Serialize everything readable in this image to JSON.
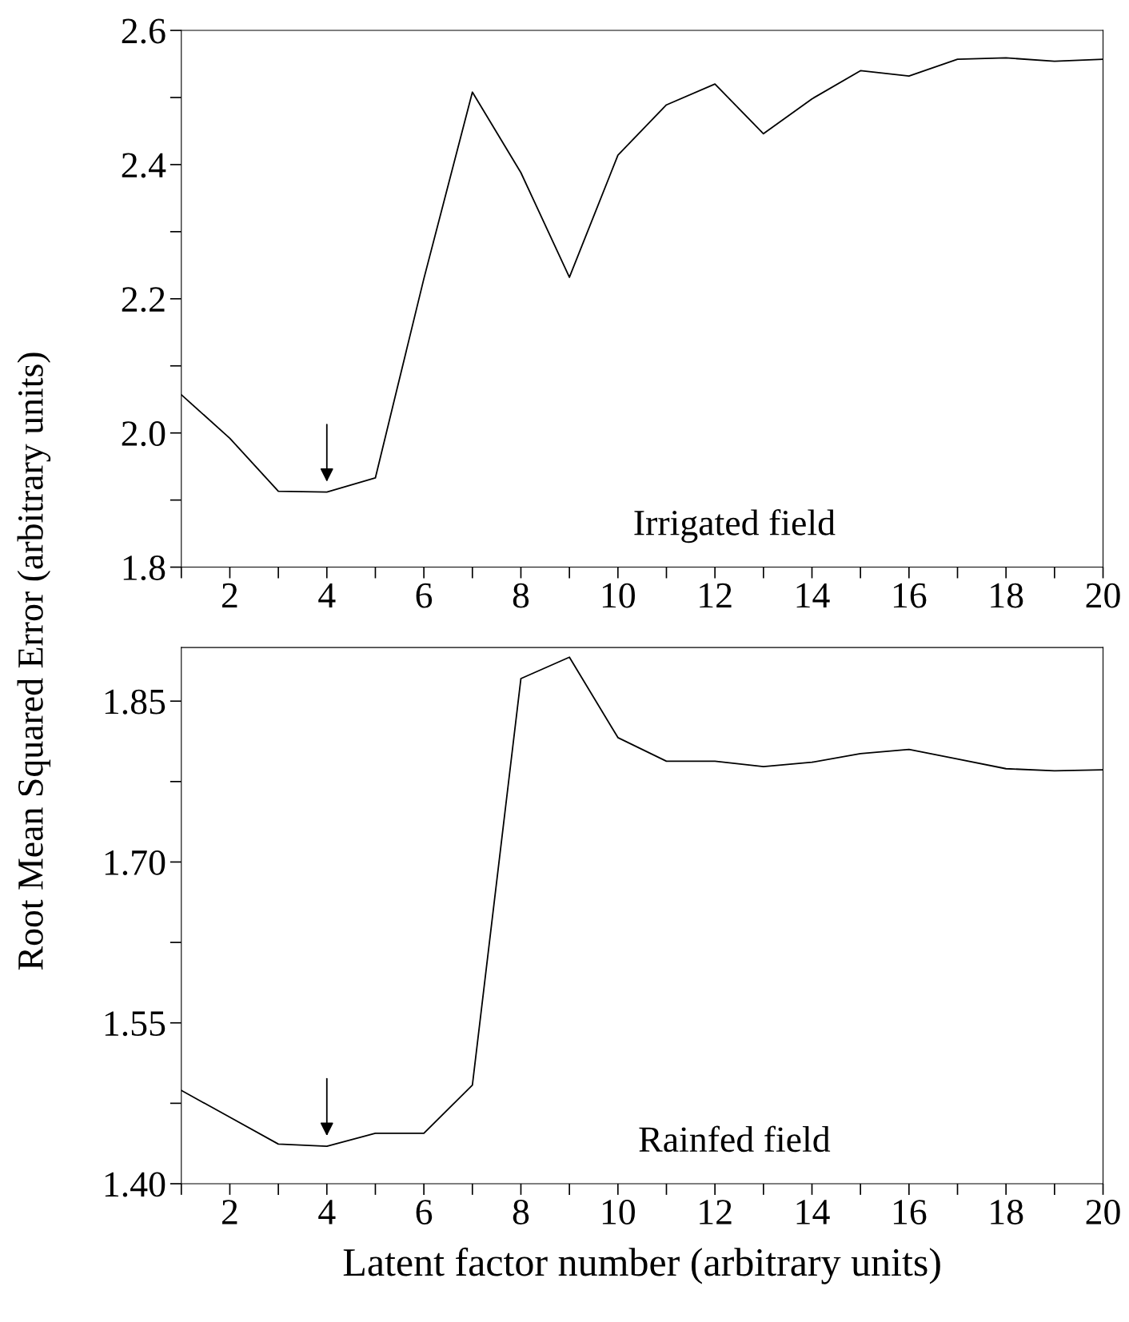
{
  "chart_data": [
    {
      "type": "line",
      "ylabel": "Root Mean Squared Error (arbitrary units)",
      "x": [
        1,
        2,
        3,
        4,
        5,
        6,
        7,
        8,
        9,
        10,
        11,
        12,
        13,
        14,
        15,
        16,
        17,
        18,
        19,
        20
      ],
      "series": [
        {
          "color": "#000000",
          "values": [
            2.057,
            1.992,
            1.913,
            1.912,
            1.933,
            2.23,
            2.508,
            2.388,
            2.232,
            2.414,
            2.489,
            2.52,
            2.446,
            2.498,
            2.54,
            2.532,
            2.557,
            2.559,
            2.554,
            2.557
          ]
        }
      ],
      "xlim": [
        1,
        20
      ],
      "ylim": [
        1.8,
        2.6
      ],
      "xticks": [
        {
          "value": 1,
          "label": null
        },
        2,
        {
          "value": 3,
          "label": null
        },
        4,
        {
          "value": 5,
          "label": null
        },
        6,
        {
          "value": 7,
          "label": null
        },
        8,
        {
          "value": 9,
          "label": null
        },
        10,
        {
          "value": 11,
          "label": null
        },
        12,
        {
          "value": 13,
          "label": null
        },
        14,
        {
          "value": 15,
          "label": null
        },
        16,
        {
          "value": 17,
          "label": null
        },
        18,
        {
          "value": 19,
          "label": null
        },
        20
      ],
      "yticks": [
        {
          "value": 1.8,
          "label": "1.8"
        },
        {
          "value": 1.9,
          "label": null
        },
        {
          "value": 2.0,
          "label": "2.0"
        },
        {
          "value": 2.1,
          "label": null
        },
        {
          "value": 2.2,
          "label": "2.2"
        },
        {
          "value": 2.3,
          "label": null
        },
        {
          "value": 2.4,
          "label": "2.4"
        },
        {
          "value": 2.5,
          "label": null
        },
        {
          "value": 2.6,
          "label": "2.6"
        }
      ],
      "annotations": [
        "Irrigated field"
      ],
      "grid": false,
      "legend": false,
      "marker": "none",
      "line_style": "solid"
    },
    {
      "type": "line",
      "xlabel": "Latent factor number (arbitrary units)",
      "x": [
        1,
        2,
        3,
        4,
        5,
        6,
        7,
        8,
        9,
        10,
        11,
        12,
        13,
        14,
        15,
        16,
        17,
        18,
        19,
        20
      ],
      "series": [
        {
          "color": "#000000",
          "values": [
            1.487,
            1.462,
            1.437,
            1.435,
            1.447,
            1.447,
            1.492,
            1.871,
            1.891,
            1.816,
            1.794,
            1.794,
            1.789,
            1.793,
            1.801,
            1.805,
            1.796,
            1.787,
            1.785,
            1.786
          ]
        }
      ],
      "xlim": [
        1,
        20
      ],
      "ylim": [
        1.4,
        1.9
      ],
      "xticks": [
        {
          "value": 1,
          "label": null
        },
        2,
        {
          "value": 3,
          "label": null
        },
        4,
        {
          "value": 5,
          "label": null
        },
        6,
        {
          "value": 7,
          "label": null
        },
        8,
        {
          "value": 9,
          "label": null
        },
        10,
        {
          "value": 11,
          "label": null
        },
        12,
        {
          "value": 13,
          "label": null
        },
        14,
        {
          "value": 15,
          "label": null
        },
        16,
        {
          "value": 17,
          "label": null
        },
        18,
        {
          "value": 19,
          "label": null
        },
        20
      ],
      "yticks": [
        {
          "value": 1.4,
          "label": "1.40"
        },
        {
          "value": 1.475,
          "label": null
        },
        {
          "value": 1.55,
          "label": "1.55"
        },
        {
          "value": 1.625,
          "label": null
        },
        {
          "value": 1.7,
          "label": "1.70"
        },
        {
          "value": 1.775,
          "label": null
        },
        {
          "value": 1.85,
          "label": "1.85"
        }
      ],
      "annotations": [
        "Rainfed field"
      ],
      "grid": false,
      "legend": false,
      "marker": "none",
      "line_style": "solid"
    }
  ]
}
